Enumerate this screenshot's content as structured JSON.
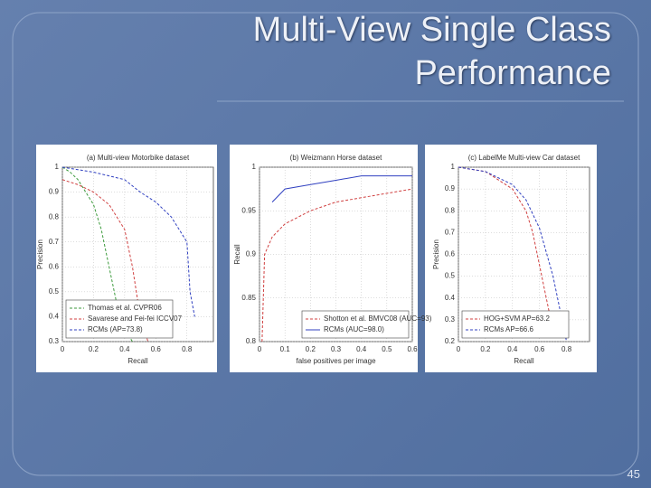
{
  "slide": {
    "title_line1": "Multi-View Single Class",
    "title_line2": "Performance",
    "page_number": "45"
  },
  "chart_data": [
    {
      "type": "line",
      "title": "(a) Multi-view Motorbike dataset",
      "x_label": "Recall",
      "y_label": "Precision",
      "xlim": [
        0,
        0.97
      ],
      "xticks": [
        0,
        0.2,
        0.4,
        0.6,
        0.8
      ],
      "ylim": [
        0.3,
        1
      ],
      "yticks": [
        0.3,
        0.4,
        0.5,
        0.6,
        0.7,
        0.8,
        0.9,
        1
      ],
      "grid": true,
      "legend": "lower left",
      "series": [
        {
          "name": "Thomas et al. CVPR06",
          "color": "#3c9a3c",
          "linestyle": "dashed",
          "x": [
            0,
            0.05,
            0.1,
            0.15,
            0.2,
            0.25,
            0.3,
            0.35,
            0.4,
            0.45
          ],
          "values": [
            1,
            0.98,
            0.95,
            0.9,
            0.85,
            0.75,
            0.6,
            0.45,
            0.35,
            0.3
          ]
        },
        {
          "name": "Savarese and Fei-fei ICCV07",
          "color": "#d04040",
          "linestyle": "dashed",
          "x": [
            0,
            0.1,
            0.2,
            0.3,
            0.4,
            0.45,
            0.5,
            0.55
          ],
          "values": [
            0.95,
            0.93,
            0.9,
            0.85,
            0.75,
            0.6,
            0.4,
            0.3
          ]
        },
        {
          "name": "RCMs (AP=73.8)",
          "color": "#3040c0",
          "linestyle": "dashed",
          "x": [
            0,
            0.2,
            0.4,
            0.5,
            0.6,
            0.7,
            0.8,
            0.82,
            0.85
          ],
          "values": [
            1,
            0.98,
            0.95,
            0.9,
            0.86,
            0.8,
            0.7,
            0.5,
            0.4
          ]
        }
      ]
    },
    {
      "type": "line",
      "title": "(b) Weizmann Horse dataset",
      "x_label": "false positives per image",
      "y_label": "Recall",
      "xlim": [
        0,
        0.6
      ],
      "xticks": [
        0,
        0.1,
        0.2,
        0.3,
        0.4,
        0.5,
        0.6
      ],
      "ylim": [
        0.8,
        1
      ],
      "yticks": [
        0.8,
        0.85,
        0.9,
        0.95,
        1
      ],
      "grid": true,
      "legend": "lower right",
      "series": [
        {
          "name": "Shotton et al. BMVC08 (AUC=93)",
          "color": "#d04040",
          "linestyle": "dashed",
          "x": [
            0.01,
            0.02,
            0.05,
            0.1,
            0.2,
            0.3,
            0.4,
            0.5,
            0.6
          ],
          "values": [
            0.8,
            0.9,
            0.92,
            0.935,
            0.95,
            0.96,
            0.965,
            0.97,
            0.975
          ]
        },
        {
          "name": "RCMs (AUC=98.0)",
          "color": "#3040c0",
          "linestyle": "solid",
          "x": [
            0.05,
            0.1,
            0.2,
            0.3,
            0.4,
            0.5,
            0.6
          ],
          "values": [
            0.96,
            0.975,
            0.98,
            0.985,
            0.99,
            0.99,
            0.99
          ]
        }
      ]
    },
    {
      "type": "line",
      "title": "(c) LabelMe Multi-view Car dataset",
      "x_label": "Recall",
      "y_label": "Precision",
      "xlim": [
        0,
        0.97
      ],
      "xticks": [
        0,
        0.2,
        0.4,
        0.6,
        0.8
      ],
      "ylim": [
        0.2,
        1
      ],
      "yticks": [
        0.2,
        0.3,
        0.4,
        0.5,
        0.6,
        0.7,
        0.8,
        0.9,
        1
      ],
      "grid": true,
      "legend": "lower left",
      "series": [
        {
          "name": "HOG+SVM AP=63.2",
          "color": "#d04040",
          "linestyle": "dashed",
          "x": [
            0,
            0.2,
            0.4,
            0.5,
            0.55,
            0.6,
            0.65,
            0.7
          ],
          "values": [
            1,
            0.98,
            0.9,
            0.8,
            0.7,
            0.55,
            0.4,
            0.25
          ]
        },
        {
          "name": "RCMs AP=66.6",
          "color": "#3040c0",
          "linestyle": "dashed",
          "x": [
            0,
            0.2,
            0.4,
            0.5,
            0.6,
            0.7,
            0.75,
            0.8
          ],
          "values": [
            1,
            0.98,
            0.92,
            0.85,
            0.72,
            0.5,
            0.35,
            0.2
          ]
        }
      ]
    }
  ]
}
